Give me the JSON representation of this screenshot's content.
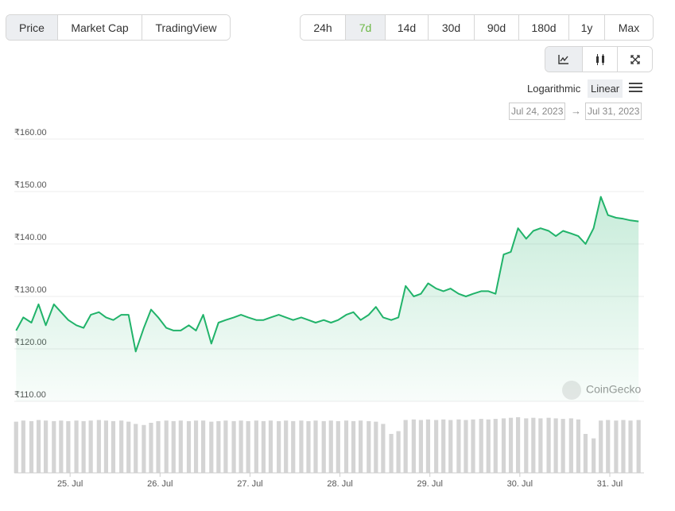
{
  "ui": {
    "tabs": [
      "Price",
      "Market Cap",
      "TradingView"
    ],
    "active_tab": 0,
    "ranges": [
      "24h",
      "7d",
      "14d",
      "30d",
      "90d",
      "180d",
      "1y",
      "Max"
    ],
    "active_range": 1,
    "scales": [
      "Logarithmic",
      "Linear"
    ],
    "active_scale": 1,
    "date_from": "Jul 24, 2023",
    "date_arrow": "→",
    "date_to": "Jul 31, 2023",
    "watermark": "CoinGecko"
  },
  "chart_data": {
    "type": "line",
    "color": "#21b36a",
    "volume_color": "#d4d4d4",
    "x": [
      24.4,
      24.48,
      24.57,
      24.65,
      24.73,
      24.82,
      24.9,
      24.98,
      25.07,
      25.15,
      25.23,
      25.32,
      25.4,
      25.48,
      25.57,
      25.65,
      25.73,
      25.82,
      25.9,
      25.98,
      26.07,
      26.15,
      26.23,
      26.32,
      26.4,
      26.48,
      26.57,
      26.65,
      26.73,
      26.82,
      26.9,
      26.98,
      27.07,
      27.15,
      27.23,
      27.32,
      27.4,
      27.48,
      27.57,
      27.65,
      27.73,
      27.82,
      27.9,
      27.98,
      28.07,
      28.15,
      28.23,
      28.32,
      28.4,
      28.48,
      28.57,
      28.65,
      28.73,
      28.82,
      28.9,
      28.98,
      29.07,
      29.15,
      29.23,
      29.32,
      29.4,
      29.48,
      29.57,
      29.65,
      29.73,
      29.82,
      29.9,
      29.98,
      30.07,
      30.15,
      30.23,
      30.32,
      30.4,
      30.48,
      30.57,
      30.65,
      30.73,
      30.82,
      30.9,
      30.98,
      31.07,
      31.15,
      31.23,
      31.32
    ],
    "values": [
      123.5,
      126,
      125,
      128.5,
      124.5,
      128.5,
      127,
      125.5,
      124.5,
      124,
      126.5,
      127,
      126,
      125.5,
      126.5,
      126.5,
      119.5,
      124,
      127.5,
      126,
      124,
      123.5,
      123.5,
      124.5,
      123.5,
      126.5,
      121,
      125,
      125.5,
      126,
      126.5,
      126,
      125.5,
      125.5,
      126,
      126.5,
      126,
      125.5,
      126,
      125.5,
      125,
      125.5,
      125,
      125.5,
      126.5,
      127,
      125.5,
      126.5,
      128,
      126,
      125.5,
      126,
      132,
      130,
      130.5,
      132.5,
      131.5,
      131,
      131.5,
      130.5,
      130,
      130.5,
      131,
      131,
      130.5,
      138,
      138.5,
      143,
      141,
      142.5,
      143,
      142.5,
      141.5,
      142.5,
      142,
      141.5,
      140,
      143,
      149,
      145.5,
      145,
      144.8,
      144.5,
      144.3
    ],
    "volumes": [
      92,
      94,
      93,
      95,
      94,
      93,
      94,
      93,
      94,
      93,
      94,
      95,
      94,
      93,
      94,
      92,
      88,
      86,
      90,
      93,
      94,
      93,
      94,
      93,
      94,
      94,
      92,
      93,
      94,
      93,
      94,
      93,
      94,
      93,
      94,
      93,
      94,
      93,
      94,
      93,
      94,
      93,
      94,
      93,
      94,
      93,
      94,
      93,
      92,
      88,
      70,
      75,
      95,
      96,
      95,
      96,
      95,
      96,
      95,
      96,
      95,
      96,
      97,
      96,
      97,
      98,
      99,
      100,
      98,
      99,
      98,
      99,
      98,
      97,
      98,
      96,
      70,
      62,
      94,
      95,
      94,
      95,
      94,
      95
    ],
    "volume_lim": [
      0,
      100
    ],
    "xlim": [
      24.38,
      31.38
    ],
    "xticks": [
      {
        "value": 25,
        "label": "25. Jul"
      },
      {
        "value": 26,
        "label": "26. Jul"
      },
      {
        "value": 27,
        "label": "27. Jul"
      },
      {
        "value": 28,
        "label": "28. Jul"
      },
      {
        "value": 29,
        "label": "29. Jul"
      },
      {
        "value": 30,
        "label": "30. Jul"
      },
      {
        "value": 31,
        "label": "31. Jul"
      }
    ],
    "ylim": [
      110,
      160
    ],
    "yticks": [
      {
        "value": 110,
        "label": "₹110.00"
      },
      {
        "value": 120,
        "label": "₹120.00"
      },
      {
        "value": 130,
        "label": "₹130.00"
      },
      {
        "value": 140,
        "label": "₹140.00"
      },
      {
        "value": 150,
        "label": "₹150.00"
      },
      {
        "value": 160,
        "label": "₹160.00"
      }
    ],
    "grid": true
  }
}
